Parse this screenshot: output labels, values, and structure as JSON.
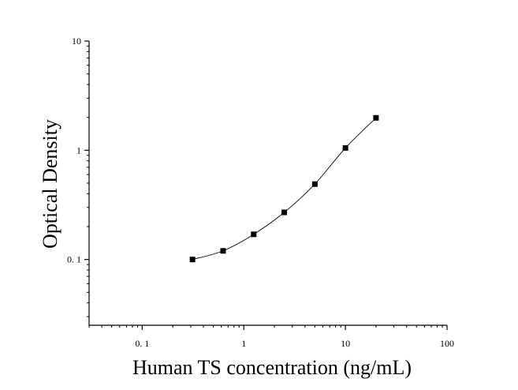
{
  "chart_data": {
    "type": "scatter",
    "title": "",
    "xlabel": "Human TS concentration (ng/mL)",
    "ylabel": "Optical Density",
    "x_scale": "log",
    "y_scale": "log",
    "xlim": [
      0.03,
      100
    ],
    "ylim": [
      0.025,
      10
    ],
    "x_ticks": [
      {
        "value": 0.1,
        "label": "0. 1"
      },
      {
        "value": 1,
        "label": "1"
      },
      {
        "value": 10,
        "label": "10"
      },
      {
        "value": 100,
        "label": "100"
      }
    ],
    "y_ticks": [
      {
        "value": 0.1,
        "label": "0. 1"
      },
      {
        "value": 1,
        "label": "1"
      },
      {
        "value": 10,
        "label": "10"
      }
    ],
    "grid": false,
    "series": [
      {
        "x": [
          0.3125,
          0.625,
          1.25,
          2.5,
          5,
          10,
          20
        ],
        "y": [
          0.1,
          0.12,
          0.17,
          0.27,
          0.49,
          1.05,
          1.98
        ],
        "marker": "square",
        "fit_curve": true
      }
    ],
    "colors": {
      "marker": "#000000",
      "curve": "#000000",
      "axis": "#000000"
    }
  }
}
